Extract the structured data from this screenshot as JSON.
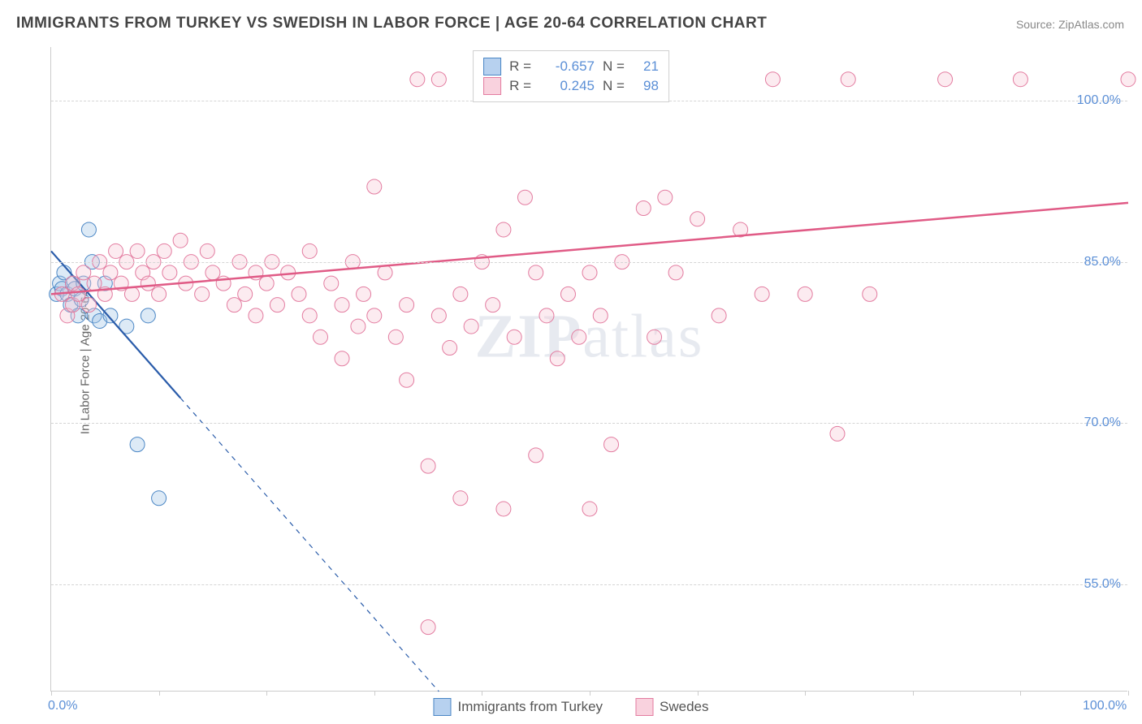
{
  "title": "IMMIGRANTS FROM TURKEY VS SWEDISH IN LABOR FORCE | AGE 20-64 CORRELATION CHART",
  "source": "Source: ZipAtlas.com",
  "y_axis_label": "In Labor Force | Age 20-64",
  "watermark_bold": "ZIP",
  "watermark_rest": "atlas",
  "chart": {
    "type": "scatter",
    "background_color": "#ffffff",
    "grid_color": "#d5d5d5",
    "axis_color": "#cccccc",
    "tick_label_color": "#5b8fd6",
    "tick_fontsize": 16,
    "title_fontsize": 19,
    "title_color": "#444444",
    "xlim": [
      0,
      100
    ],
    "ylim": [
      45,
      105
    ],
    "x_ticks": [
      0,
      10,
      20,
      30,
      40,
      50,
      60,
      70,
      80,
      90,
      100
    ],
    "x_tick_labels_visible": [
      {
        "x": 0,
        "label": "0.0%"
      },
      {
        "x": 100,
        "label": "100.0%"
      }
    ],
    "y_ticks": [
      55,
      70,
      85,
      100
    ],
    "y_tick_labels": [
      "55.0%",
      "70.0%",
      "85.0%",
      "100.0%"
    ],
    "marker_radius": 9,
    "marker_stroke_width": 1,
    "fill_opacity": 0.35,
    "series": [
      {
        "name": "Immigrants from Turkey",
        "color_fill": "#9dc3e6",
        "color_stroke": "#4a86c5",
        "legend_fill": "#b7d1ef",
        "legend_stroke": "#4a86c5",
        "R": "-0.657",
        "N": "21",
        "trend": {
          "x1": 0,
          "y1": 86,
          "x2": 36,
          "y2": 45,
          "color": "#2a5caa",
          "width": 2.2,
          "dash_after_x": 12
        },
        "points": [
          {
            "x": 0.5,
            "y": 82
          },
          {
            "x": 0.8,
            "y": 83
          },
          {
            "x": 1,
            "y": 82.5
          },
          {
            "x": 1.2,
            "y": 84
          },
          {
            "x": 1.5,
            "y": 82
          },
          {
            "x": 1.8,
            "y": 81
          },
          {
            "x": 2,
            "y": 83
          },
          {
            "x": 2.2,
            "y": 82.5
          },
          {
            "x": 2.5,
            "y": 80
          },
          {
            "x": 2.8,
            "y": 81.5
          },
          {
            "x": 3,
            "y": 83
          },
          {
            "x": 3.5,
            "y": 88
          },
          {
            "x": 3.8,
            "y": 85
          },
          {
            "x": 4,
            "y": 80
          },
          {
            "x": 4.5,
            "y": 79.5
          },
          {
            "x": 5,
            "y": 83
          },
          {
            "x": 5.5,
            "y": 80
          },
          {
            "x": 7,
            "y": 79
          },
          {
            "x": 9,
            "y": 80
          },
          {
            "x": 8,
            "y": 68
          },
          {
            "x": 10,
            "y": 63
          }
        ]
      },
      {
        "name": "Swedes",
        "color_fill": "#f7c6d5",
        "color_stroke": "#e37ca0",
        "legend_fill": "#f9d2de",
        "legend_stroke": "#e37ca0",
        "R": "0.245",
        "N": "98",
        "trend": {
          "x1": 0,
          "y1": 82,
          "x2": 100,
          "y2": 90.5,
          "color": "#e05b86",
          "width": 2.5
        },
        "points": [
          {
            "x": 1,
            "y": 82
          },
          {
            "x": 1.5,
            "y": 80
          },
          {
            "x": 2,
            "y": 81
          },
          {
            "x": 2,
            "y": 83
          },
          {
            "x": 2.5,
            "y": 82
          },
          {
            "x": 3,
            "y": 84
          },
          {
            "x": 3.5,
            "y": 81
          },
          {
            "x": 4,
            "y": 83
          },
          {
            "x": 4.5,
            "y": 85
          },
          {
            "x": 5,
            "y": 82
          },
          {
            "x": 5.5,
            "y": 84
          },
          {
            "x": 6,
            "y": 86
          },
          {
            "x": 6.5,
            "y": 83
          },
          {
            "x": 7,
            "y": 85
          },
          {
            "x": 7.5,
            "y": 82
          },
          {
            "x": 8,
            "y": 86
          },
          {
            "x": 8.5,
            "y": 84
          },
          {
            "x": 9,
            "y": 83
          },
          {
            "x": 9.5,
            "y": 85
          },
          {
            "x": 10,
            "y": 82
          },
          {
            "x": 10.5,
            "y": 86
          },
          {
            "x": 11,
            "y": 84
          },
          {
            "x": 12,
            "y": 87
          },
          {
            "x": 12.5,
            "y": 83
          },
          {
            "x": 13,
            "y": 85
          },
          {
            "x": 14,
            "y": 82
          },
          {
            "x": 14.5,
            "y": 86
          },
          {
            "x": 15,
            "y": 84
          },
          {
            "x": 16,
            "y": 83
          },
          {
            "x": 17,
            "y": 81
          },
          {
            "x": 17.5,
            "y": 85
          },
          {
            "x": 18,
            "y": 82
          },
          {
            "x": 19,
            "y": 84
          },
          {
            "x": 19,
            "y": 80
          },
          {
            "x": 20,
            "y": 83
          },
          {
            "x": 20.5,
            "y": 85
          },
          {
            "x": 21,
            "y": 81
          },
          {
            "x": 22,
            "y": 84
          },
          {
            "x": 23,
            "y": 82
          },
          {
            "x": 24,
            "y": 86
          },
          {
            "x": 24,
            "y": 80
          },
          {
            "x": 25,
            "y": 78
          },
          {
            "x": 26,
            "y": 83
          },
          {
            "x": 27,
            "y": 81
          },
          {
            "x": 27,
            "y": 76
          },
          {
            "x": 28,
            "y": 85
          },
          {
            "x": 28.5,
            "y": 79
          },
          {
            "x": 29,
            "y": 82
          },
          {
            "x": 30,
            "y": 92
          },
          {
            "x": 30,
            "y": 80
          },
          {
            "x": 31,
            "y": 84
          },
          {
            "x": 32,
            "y": 78
          },
          {
            "x": 33,
            "y": 81
          },
          {
            "x": 33,
            "y": 74
          },
          {
            "x": 34,
            "y": 102
          },
          {
            "x": 35,
            "y": 66
          },
          {
            "x": 35,
            "y": 51
          },
          {
            "x": 36,
            "y": 80
          },
          {
            "x": 36,
            "y": 102
          },
          {
            "x": 37,
            "y": 77
          },
          {
            "x": 38,
            "y": 63
          },
          {
            "x": 38,
            "y": 82
          },
          {
            "x": 39,
            "y": 79
          },
          {
            "x": 40,
            "y": 85
          },
          {
            "x": 41,
            "y": 81
          },
          {
            "x": 42,
            "y": 62
          },
          {
            "x": 42,
            "y": 88
          },
          {
            "x": 43,
            "y": 78
          },
          {
            "x": 44,
            "y": 91
          },
          {
            "x": 45,
            "y": 67
          },
          {
            "x": 45,
            "y": 84
          },
          {
            "x": 46,
            "y": 80
          },
          {
            "x": 47,
            "y": 76
          },
          {
            "x": 48,
            "y": 82
          },
          {
            "x": 49,
            "y": 78
          },
          {
            "x": 50,
            "y": 84
          },
          {
            "x": 50,
            "y": 62
          },
          {
            "x": 50,
            "y": 102
          },
          {
            "x": 51,
            "y": 80
          },
          {
            "x": 52,
            "y": 68
          },
          {
            "x": 53,
            "y": 85
          },
          {
            "x": 54,
            "y": 102
          },
          {
            "x": 55,
            "y": 90
          },
          {
            "x": 56,
            "y": 78
          },
          {
            "x": 57,
            "y": 91
          },
          {
            "x": 58,
            "y": 84
          },
          {
            "x": 60,
            "y": 89
          },
          {
            "x": 62,
            "y": 80
          },
          {
            "x": 64,
            "y": 88
          },
          {
            "x": 66,
            "y": 82
          },
          {
            "x": 67,
            "y": 102
          },
          {
            "x": 70,
            "y": 82
          },
          {
            "x": 73,
            "y": 69
          },
          {
            "x": 74,
            "y": 102
          },
          {
            "x": 76,
            "y": 82
          },
          {
            "x": 83,
            "y": 102
          },
          {
            "x": 90,
            "y": 102
          },
          {
            "x": 100,
            "y": 102
          }
        ]
      }
    ]
  },
  "legend_bottom": [
    {
      "label": "Immigrants from Turkey"
    },
    {
      "label": "Swedes"
    }
  ]
}
